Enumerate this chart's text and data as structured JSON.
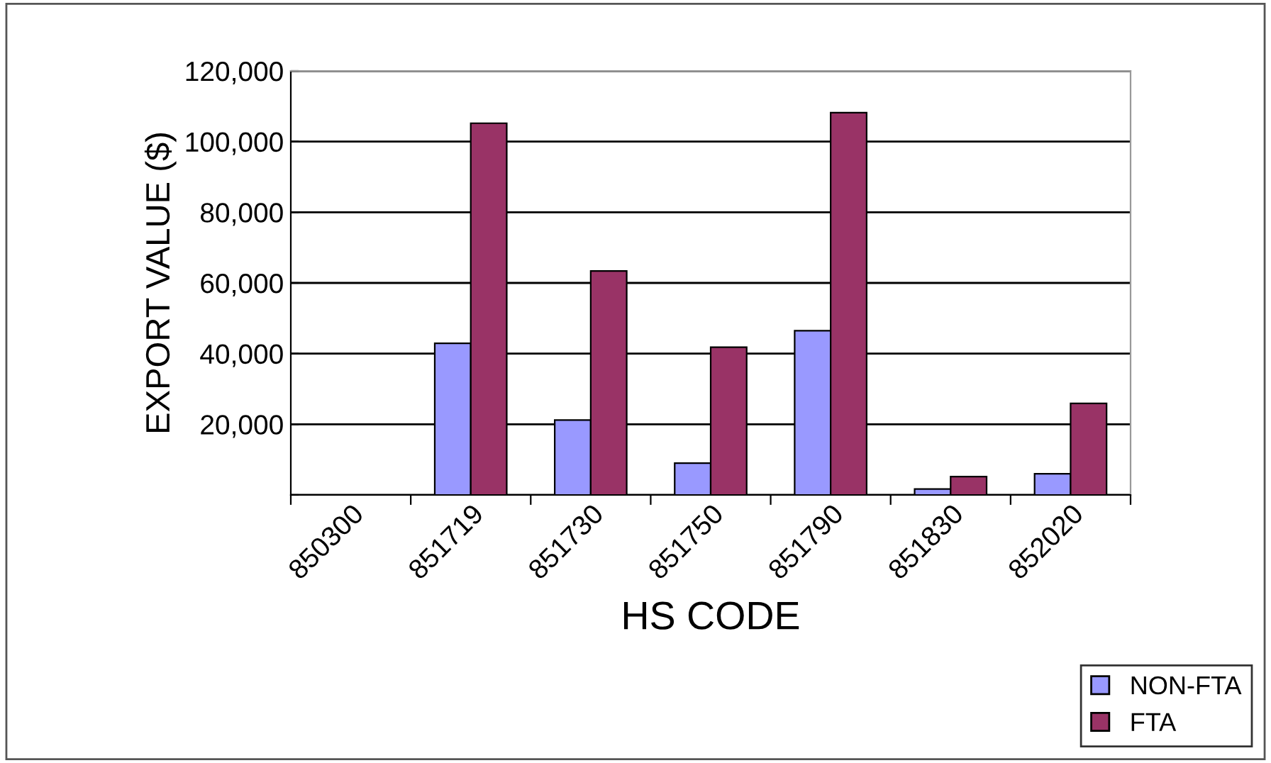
{
  "chart_data": {
    "type": "bar",
    "xlabel": "HS CODE",
    "ylabel": "EXPORT VALUE ($)",
    "categories": [
      "850300",
      "851719",
      "851730",
      "851750",
      "851790",
      "851830",
      "852020"
    ],
    "series": [
      {
        "name": "NON-FTA",
        "color": "#9999ff",
        "values": [
          null,
          42900,
          21200,
          9000,
          46500,
          1700,
          6000
        ]
      },
      {
        "name": "FTA",
        "color": "#993366",
        "values": [
          null,
          105200,
          63400,
          41800,
          108200,
          5200,
          25900
        ]
      }
    ],
    "ylim": [
      0,
      120000
    ],
    "yticks": [
      {
        "value": 0,
        "label": null
      },
      {
        "value": 20000,
        "label": "20,000"
      },
      {
        "value": 40000,
        "label": "40,000"
      },
      {
        "value": 60000,
        "label": "60,000"
      },
      {
        "value": 80000,
        "label": "80,000"
      },
      {
        "value": 100000,
        "label": "100,000"
      },
      {
        "value": 120000,
        "label": "120,000"
      }
    ],
    "grid": "y",
    "legend": "bottom right"
  }
}
